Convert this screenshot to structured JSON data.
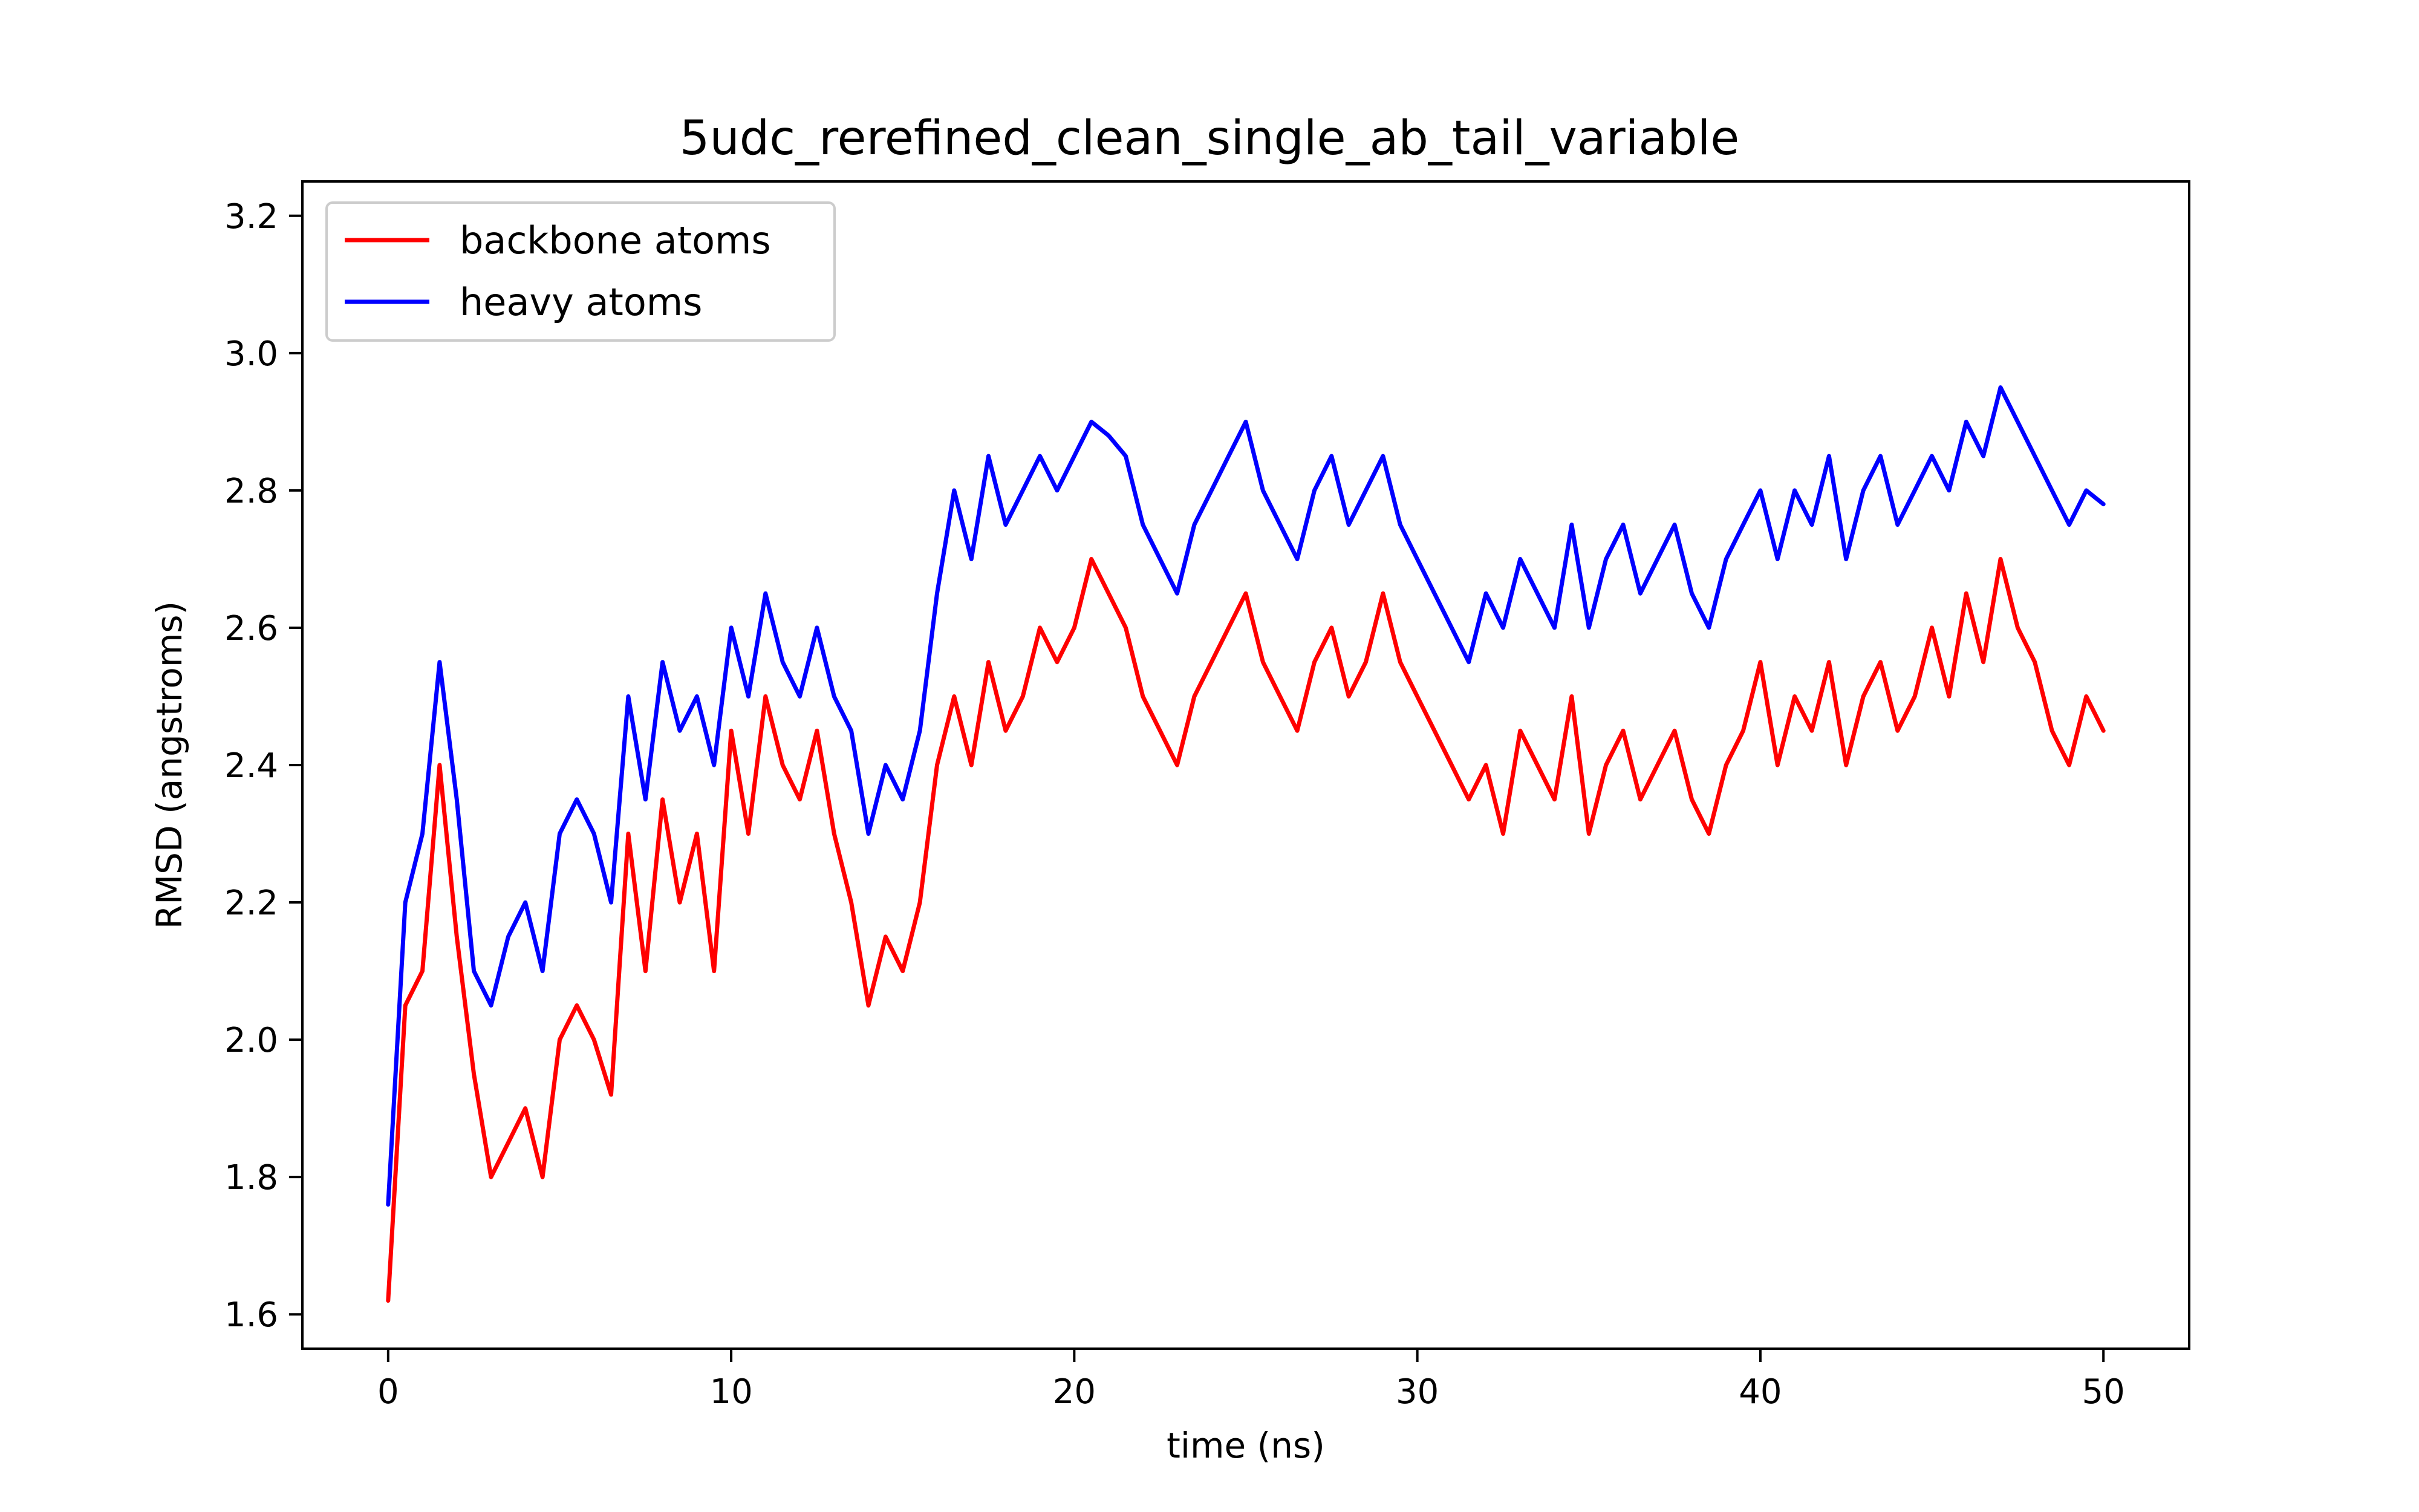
{
  "chart_data": {
    "type": "line",
    "title": "5udc_rerefined_clean_single_ab_tail_variable",
    "xlabel": "time (ns)",
    "ylabel": "RMSD (angstroms)",
    "xlim": [
      -2.5,
      52.5
    ],
    "ylim": [
      1.55,
      3.25
    ],
    "xticks": [
      0,
      10,
      20,
      30,
      40,
      50
    ],
    "yticks": [
      1.6,
      1.8,
      2.0,
      2.2,
      2.4,
      2.6,
      2.8,
      3.0,
      3.2
    ],
    "ytick_labels": [
      "1.6",
      "1.8",
      "2.0",
      "2.2",
      "2.4",
      "2.6",
      "2.8",
      "3.0",
      "3.2"
    ],
    "legend_position": "upper-left",
    "grid": false,
    "series": [
      {
        "name": "backbone atoms",
        "color": "#ff0000",
        "x": [
          0,
          0.5,
          1,
          1.5,
          2,
          2.5,
          3,
          3.5,
          4,
          4.5,
          5,
          5.5,
          6,
          6.5,
          7,
          7.5,
          8,
          8.5,
          9,
          9.5,
          10,
          10.5,
          11,
          11.5,
          12,
          12.5,
          13,
          13.5,
          14,
          14.5,
          15,
          15.5,
          16,
          16.5,
          17,
          17.5,
          18,
          18.5,
          19,
          19.5,
          20,
          20.5,
          21,
          21.5,
          22,
          22.5,
          23,
          23.5,
          24,
          24.5,
          25,
          25.5,
          26,
          26.5,
          27,
          27.5,
          28,
          28.5,
          29,
          29.5,
          30,
          30.5,
          31,
          31.5,
          32,
          32.5,
          33,
          33.5,
          34,
          34.5,
          35,
          35.5,
          36,
          36.5,
          37,
          37.5,
          38,
          38.5,
          39,
          39.5,
          40,
          40.5,
          41,
          41.5,
          42,
          42.5,
          43,
          43.5,
          44,
          44.5,
          45,
          45.5,
          46,
          46.5,
          47,
          47.5,
          48,
          48.5,
          49,
          49.5,
          50
        ],
        "values": [
          1.62,
          2.05,
          2.1,
          2.4,
          2.15,
          1.95,
          1.8,
          1.85,
          1.9,
          1.8,
          2.0,
          2.05,
          2.0,
          1.92,
          2.3,
          2.1,
          2.35,
          2.2,
          2.3,
          2.1,
          2.45,
          2.3,
          2.5,
          2.4,
          2.35,
          2.45,
          2.3,
          2.2,
          2.05,
          2.15,
          2.1,
          2.2,
          2.4,
          2.5,
          2.4,
          2.55,
          2.45,
          2.5,
          2.6,
          2.55,
          2.6,
          2.7,
          2.65,
          2.6,
          2.5,
          2.45,
          2.4,
          2.5,
          2.55,
          2.6,
          2.65,
          2.55,
          2.5,
          2.45,
          2.55,
          2.6,
          2.5,
          2.55,
          2.65,
          2.55,
          2.5,
          2.45,
          2.4,
          2.35,
          2.4,
          2.3,
          2.45,
          2.4,
          2.35,
          2.5,
          2.3,
          2.4,
          2.45,
          2.35,
          2.4,
          2.45,
          2.35,
          2.3,
          2.4,
          2.45,
          2.55,
          2.4,
          2.5,
          2.45,
          2.55,
          2.4,
          2.5,
          2.55,
          2.45,
          2.5,
          2.6,
          2.5,
          2.65,
          2.55,
          2.7,
          2.6,
          2.55,
          2.45,
          2.4,
          2.5,
          2.45
        ]
      },
      {
        "name": "heavy atoms",
        "color": "#0000ff",
        "x": [
          0,
          0.5,
          1,
          1.5,
          2,
          2.5,
          3,
          3.5,
          4,
          4.5,
          5,
          5.5,
          6,
          6.5,
          7,
          7.5,
          8,
          8.5,
          9,
          9.5,
          10,
          10.5,
          11,
          11.5,
          12,
          12.5,
          13,
          13.5,
          14,
          14.5,
          15,
          15.5,
          16,
          16.5,
          17,
          17.5,
          18,
          18.5,
          19,
          19.5,
          20,
          20.5,
          21,
          21.5,
          22,
          22.5,
          23,
          23.5,
          24,
          24.5,
          25,
          25.5,
          26,
          26.5,
          27,
          27.5,
          28,
          28.5,
          29,
          29.5,
          30,
          30.5,
          31,
          31.5,
          32,
          32.5,
          33,
          33.5,
          34,
          34.5,
          35,
          35.5,
          36,
          36.5,
          37,
          37.5,
          38,
          38.5,
          39,
          39.5,
          40,
          40.5,
          41,
          41.5,
          42,
          42.5,
          43,
          43.5,
          44,
          44.5,
          45,
          45.5,
          46,
          46.5,
          47,
          47.5,
          48,
          48.5,
          49,
          49.5,
          50
        ],
        "values": [
          1.76,
          2.2,
          2.3,
          2.55,
          2.35,
          2.1,
          2.05,
          2.15,
          2.2,
          2.1,
          2.3,
          2.35,
          2.3,
          2.2,
          2.5,
          2.35,
          2.55,
          2.45,
          2.5,
          2.4,
          2.6,
          2.5,
          2.65,
          2.55,
          2.5,
          2.6,
          2.5,
          2.45,
          2.3,
          2.4,
          2.35,
          2.45,
          2.65,
          2.8,
          2.7,
          2.85,
          2.75,
          2.8,
          2.85,
          2.8,
          2.85,
          2.9,
          2.88,
          2.85,
          2.75,
          2.7,
          2.65,
          2.75,
          2.8,
          2.85,
          2.9,
          2.8,
          2.75,
          2.7,
          2.8,
          2.85,
          2.75,
          2.8,
          2.85,
          2.75,
          2.7,
          2.65,
          2.6,
          2.55,
          2.65,
          2.6,
          2.7,
          2.65,
          2.6,
          2.75,
          2.6,
          2.7,
          2.75,
          2.65,
          2.7,
          2.75,
          2.65,
          2.6,
          2.7,
          2.75,
          2.8,
          2.7,
          2.8,
          2.75,
          2.85,
          2.7,
          2.8,
          2.85,
          2.75,
          2.8,
          2.85,
          2.8,
          2.9,
          2.85,
          2.95,
          2.9,
          2.85,
          2.8,
          2.75,
          2.8,
          2.78
        ]
      }
    ]
  }
}
